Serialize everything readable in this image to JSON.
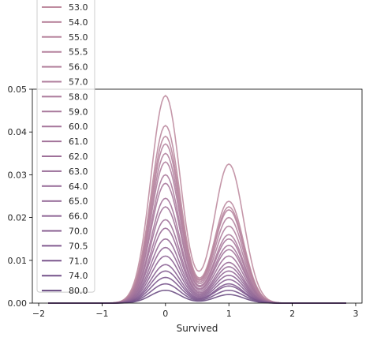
{
  "chart_data": {
    "type": "line",
    "xlabel": "Survived",
    "ylabel": "",
    "xlim": [
      -2.1,
      3.1
    ],
    "ylim": [
      0,
      0.05
    ],
    "xticks": [
      -2,
      -1,
      0,
      1,
      2,
      3
    ],
    "yticks": [
      0.0,
      0.01,
      0.02,
      0.03,
      0.04,
      0.05
    ],
    "ytick_labels": [
      "0.00",
      "0.01",
      "0.02",
      "0.03",
      "0.04",
      "0.05"
    ],
    "grid": false,
    "legend_position": "upper-left",
    "series": [
      {
        "name": "53.0",
        "color": "#bf8ca0",
        "peak0": 0.0485,
        "peak1": 0.0325
      },
      {
        "name": "54.0",
        "color": "#bb89a0",
        "peak0": 0.0415,
        "peak1": 0.0238
      },
      {
        "name": "55.0",
        "color": "#b9879f",
        "peak0": 0.039,
        "peak1": 0.0225
      },
      {
        "name": "55.5",
        "color": "#b6849f",
        "peak0": 0.0372,
        "peak1": 0.0218
      },
      {
        "name": "56.0",
        "color": "#b3829e",
        "peak0": 0.035,
        "peak1": 0.02
      },
      {
        "name": "57.0",
        "color": "#b07f9e",
        "peak0": 0.033,
        "peak1": 0.018
      },
      {
        "name": "58.0",
        "color": "#ac7c9d",
        "peak0": 0.03,
        "peak1": 0.016
      },
      {
        "name": "59.0",
        "color": "#a9799c",
        "peak0": 0.028,
        "peak1": 0.015
      },
      {
        "name": "60.0",
        "color": "#a5769b",
        "peak0": 0.0245,
        "peak1": 0.0135
      },
      {
        "name": "61.0",
        "color": "#a2739a",
        "peak0": 0.0225,
        "peak1": 0.0125
      },
      {
        "name": "62.0",
        "color": "#9e7099",
        "peak0": 0.0195,
        "peak1": 0.011
      },
      {
        "name": "63.0",
        "color": "#9a6d98",
        "peak0": 0.0175,
        "peak1": 0.0095
      },
      {
        "name": "64.0",
        "color": "#966a97",
        "peak0": 0.015,
        "peak1": 0.0085
      },
      {
        "name": "65.0",
        "color": "#926796",
        "peak0": 0.013,
        "peak1": 0.0075
      },
      {
        "name": "66.0",
        "color": "#8d6394",
        "peak0": 0.011,
        "peak1": 0.0065
      },
      {
        "name": "70.0",
        "color": "#885f92",
        "peak0": 0.009,
        "peak1": 0.0055
      },
      {
        "name": "70.5",
        "color": "#825b90",
        "peak0": 0.0075,
        "peak1": 0.0045
      },
      {
        "name": "71.0",
        "color": "#7c578d",
        "peak0": 0.006,
        "peak1": 0.004
      },
      {
        "name": "74.0",
        "color": "#75528a",
        "peak0": 0.0045,
        "peak1": 0.003
      },
      {
        "name": "80.0",
        "color": "#6a4c82",
        "peak0": 0.003,
        "peak1": 0.002
      }
    ]
  }
}
